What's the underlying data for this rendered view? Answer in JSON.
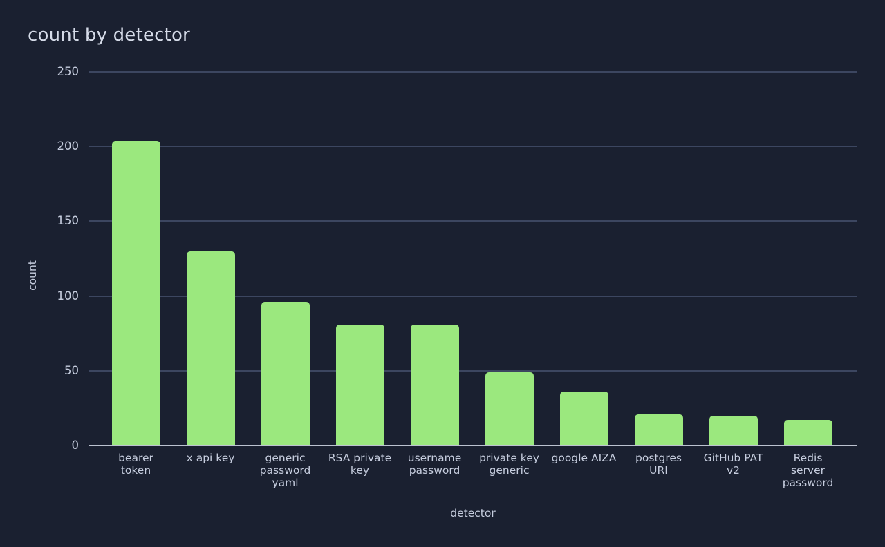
{
  "chart_data": {
    "type": "bar",
    "title": "count by detector",
    "xlabel": "detector",
    "ylabel": "count",
    "categories": [
      "bearer token",
      "x api key",
      "generic password yaml",
      "RSA private key",
      "username password",
      "private key generic",
      "google AIZA",
      "postgres URI",
      "GitHub PAT v2",
      "Redis server password"
    ],
    "values": [
      204,
      130,
      96,
      81,
      81,
      49,
      36,
      21,
      20,
      17
    ],
    "tick_label_lines": [
      [
        "bearer",
        "token"
      ],
      [
        "x api key"
      ],
      [
        "generic",
        "password",
        "yaml"
      ],
      [
        "RSA private",
        "key"
      ],
      [
        "username",
        "password"
      ],
      [
        "private key",
        "generic"
      ],
      [
        "google AIZA"
      ],
      [
        "postgres",
        "URI"
      ],
      [
        "GitHub PAT",
        "v2"
      ],
      [
        "Redis",
        "server",
        "password"
      ]
    ],
    "yticks": [
      0,
      50,
      100,
      150,
      200,
      250
    ],
    "ylim": [
      0,
      250
    ],
    "grid": true,
    "legend": "none",
    "colors": {
      "bar": "#9be87e",
      "background": "#1a2030",
      "gridline": "#3c4660",
      "axis_line": "#bcc2d0",
      "tick_text": "#c6cdde",
      "title_text": "#d5dbe8"
    }
  }
}
